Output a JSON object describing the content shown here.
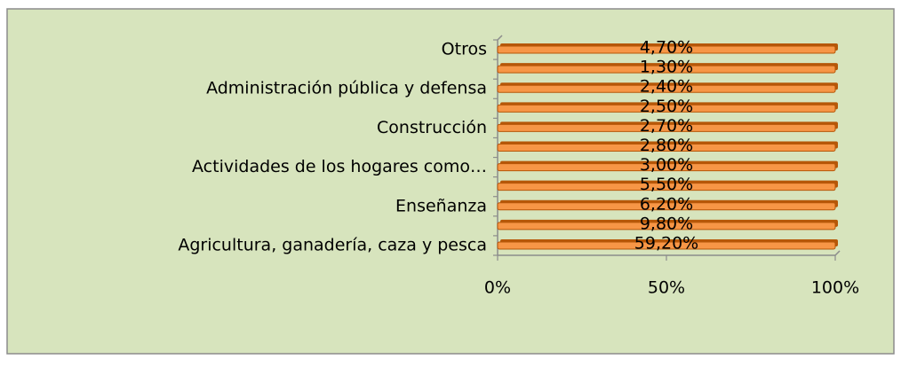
{
  "chart_data": {
    "type": "bar",
    "orientation": "horizontal",
    "stacking": "percent",
    "categories": [
      "Agricultura, ganadería, caza y pesca",
      null,
      "Enseñanza",
      null,
      "Actividades de los hogares como…",
      null,
      "Construcción",
      null,
      "Administración pública y defensa",
      null,
      "Otros"
    ],
    "values": [
      59.2,
      9.8,
      6.2,
      5.5,
      3.0,
      2.8,
      2.7,
      2.5,
      2.4,
      1.3,
      4.7
    ],
    "value_labels": [
      "59,20%",
      "9,80%",
      "6,20%",
      "5,50%",
      "3,00%",
      "2,80%",
      "2,70%",
      "2,50%",
      "2,40%",
      "1,30%",
      "4,70%"
    ],
    "color": "#f79646",
    "xlim": [
      0,
      100
    ],
    "xticks": [
      {
        "value": 0,
        "label": "0%"
      },
      {
        "value": 50,
        "label": "50%"
      },
      {
        "value": 100,
        "label": "100%"
      }
    ]
  }
}
